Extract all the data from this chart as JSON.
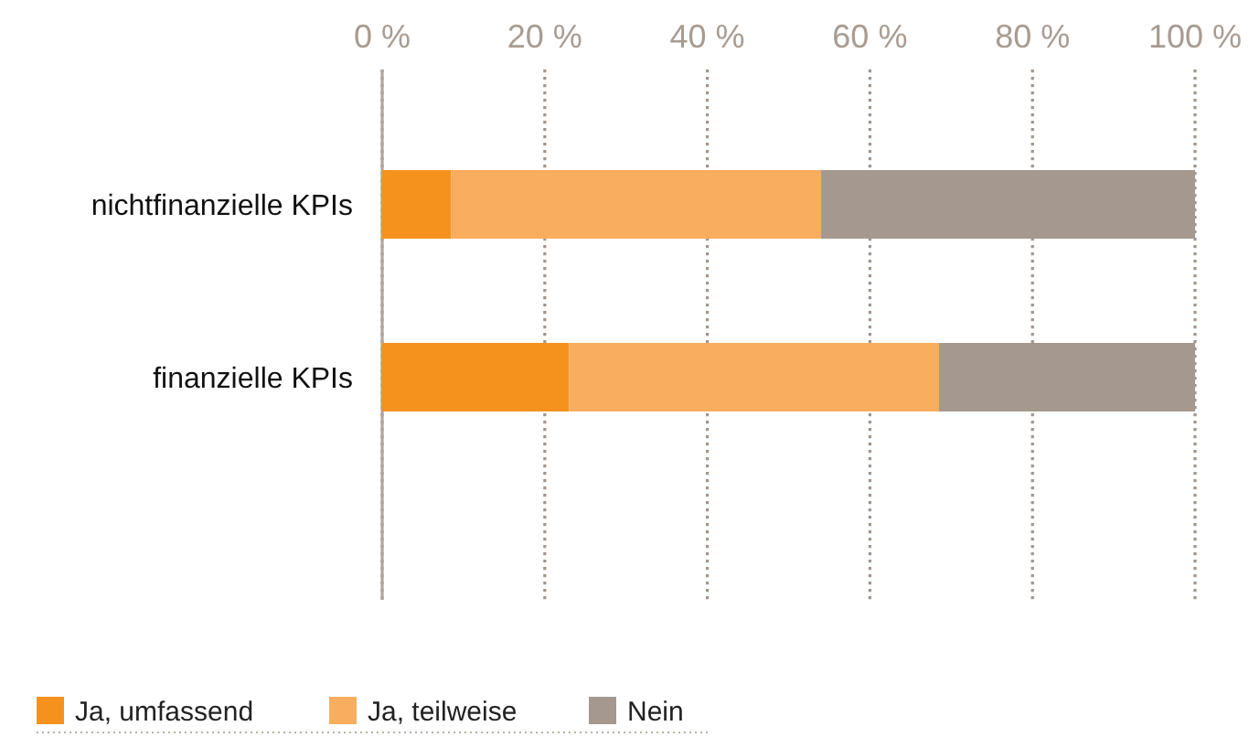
{
  "chart_data": {
    "type": "bar",
    "orientation": "horizontal",
    "stacked": true,
    "categories": [
      "nichtfinanzielle KPIs",
      "finanzielle KPIs"
    ],
    "series": [
      {
        "name": "Ja, umfassend",
        "color": "#f5921e",
        "values": [
          8.5,
          23
        ]
      },
      {
        "name": "Ja, teilweise",
        "color": "#f8ad5f",
        "values": [
          45.5,
          45.5
        ]
      },
      {
        "name": "Nein",
        "color": "#a5998f",
        "values": [
          46,
          31.5
        ]
      }
    ],
    "xlim": [
      0,
      100
    ],
    "xticks": [
      {
        "value": 0,
        "label": "0 %"
      },
      {
        "value": 20,
        "label": "20 %"
      },
      {
        "value": 40,
        "label": "40 %"
      },
      {
        "value": 60,
        "label": "60 %"
      },
      {
        "value": 80,
        "label": "80 %"
      },
      {
        "value": 100,
        "label": "100 %"
      }
    ],
    "grid": "x",
    "legend": "bottom"
  }
}
